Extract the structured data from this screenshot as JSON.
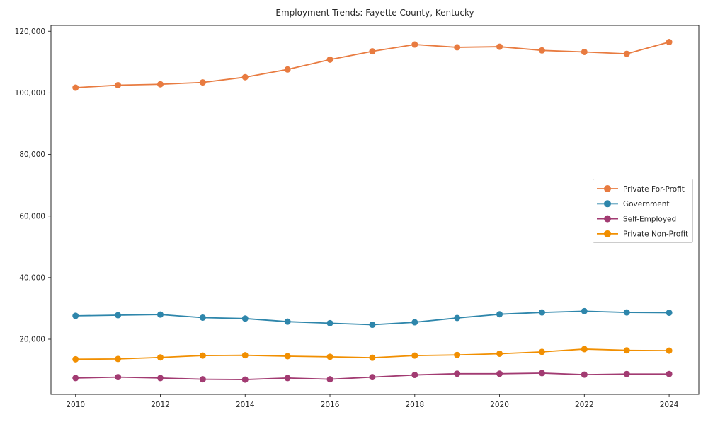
{
  "page": {
    "background": "#ffffff"
  },
  "chart_data": {
    "type": "line",
    "title": "Employment Trends: Fayette County, Kentucky",
    "xlabel": "",
    "ylabel": "",
    "x": [
      2010,
      2011,
      2012,
      2013,
      2014,
      2015,
      2016,
      2017,
      2018,
      2019,
      2020,
      2021,
      2022,
      2023,
      2024
    ],
    "series": [
      {
        "name": "Private For-Profit",
        "color": "#e87b40",
        "values": [
          101700,
          102500,
          102800,
          103400,
          105100,
          107600,
          110800,
          113500,
          115700,
          114800,
          115000,
          113800,
          113300,
          112700,
          116500
        ]
      },
      {
        "name": "Government",
        "color": "#2e86ab",
        "values": [
          27600,
          27800,
          28000,
          27000,
          26700,
          25700,
          25200,
          24700,
          25500,
          26900,
          28100,
          28700,
          29100,
          28700,
          28600
        ]
      },
      {
        "name": "Self-Employed",
        "color": "#a23b72",
        "values": [
          7400,
          7700,
          7400,
          7000,
          6900,
          7400,
          7000,
          7700,
          8400,
          8800,
          8800,
          9000,
          8500,
          8700,
          8700
        ]
      },
      {
        "name": "Private Non-Profit",
        "color": "#f18f01",
        "values": [
          13500,
          13600,
          14100,
          14700,
          14800,
          14500,
          14300,
          14000,
          14700,
          14900,
          15300,
          15900,
          16800,
          16400,
          16300
        ]
      }
    ],
    "xticks": [
      2010,
      2012,
      2014,
      2016,
      2018,
      2020,
      2022,
      2024
    ],
    "xtick_labels": [
      "2010",
      "2012",
      "2014",
      "2016",
      "2018",
      "2020",
      "2022",
      "2024"
    ],
    "yticks": [
      20000,
      40000,
      60000,
      80000,
      100000,
      120000
    ],
    "ytick_labels": [
      "20,000",
      "40,000",
      "60,000",
      "80,000",
      "100,000",
      "120,000"
    ],
    "xlim": [
      2009.42,
      2024.7
    ],
    "ylim": [
      2100,
      121900
    ],
    "grid": false,
    "marker": "circle",
    "legend": {
      "position": "center-right",
      "entries": [
        "Private For-Profit",
        "Government",
        "Self-Employed",
        "Private Non-Profit"
      ]
    },
    "axis_color": "#262626",
    "text_color": "#262626",
    "legend_border_color": "#cccccc"
  }
}
